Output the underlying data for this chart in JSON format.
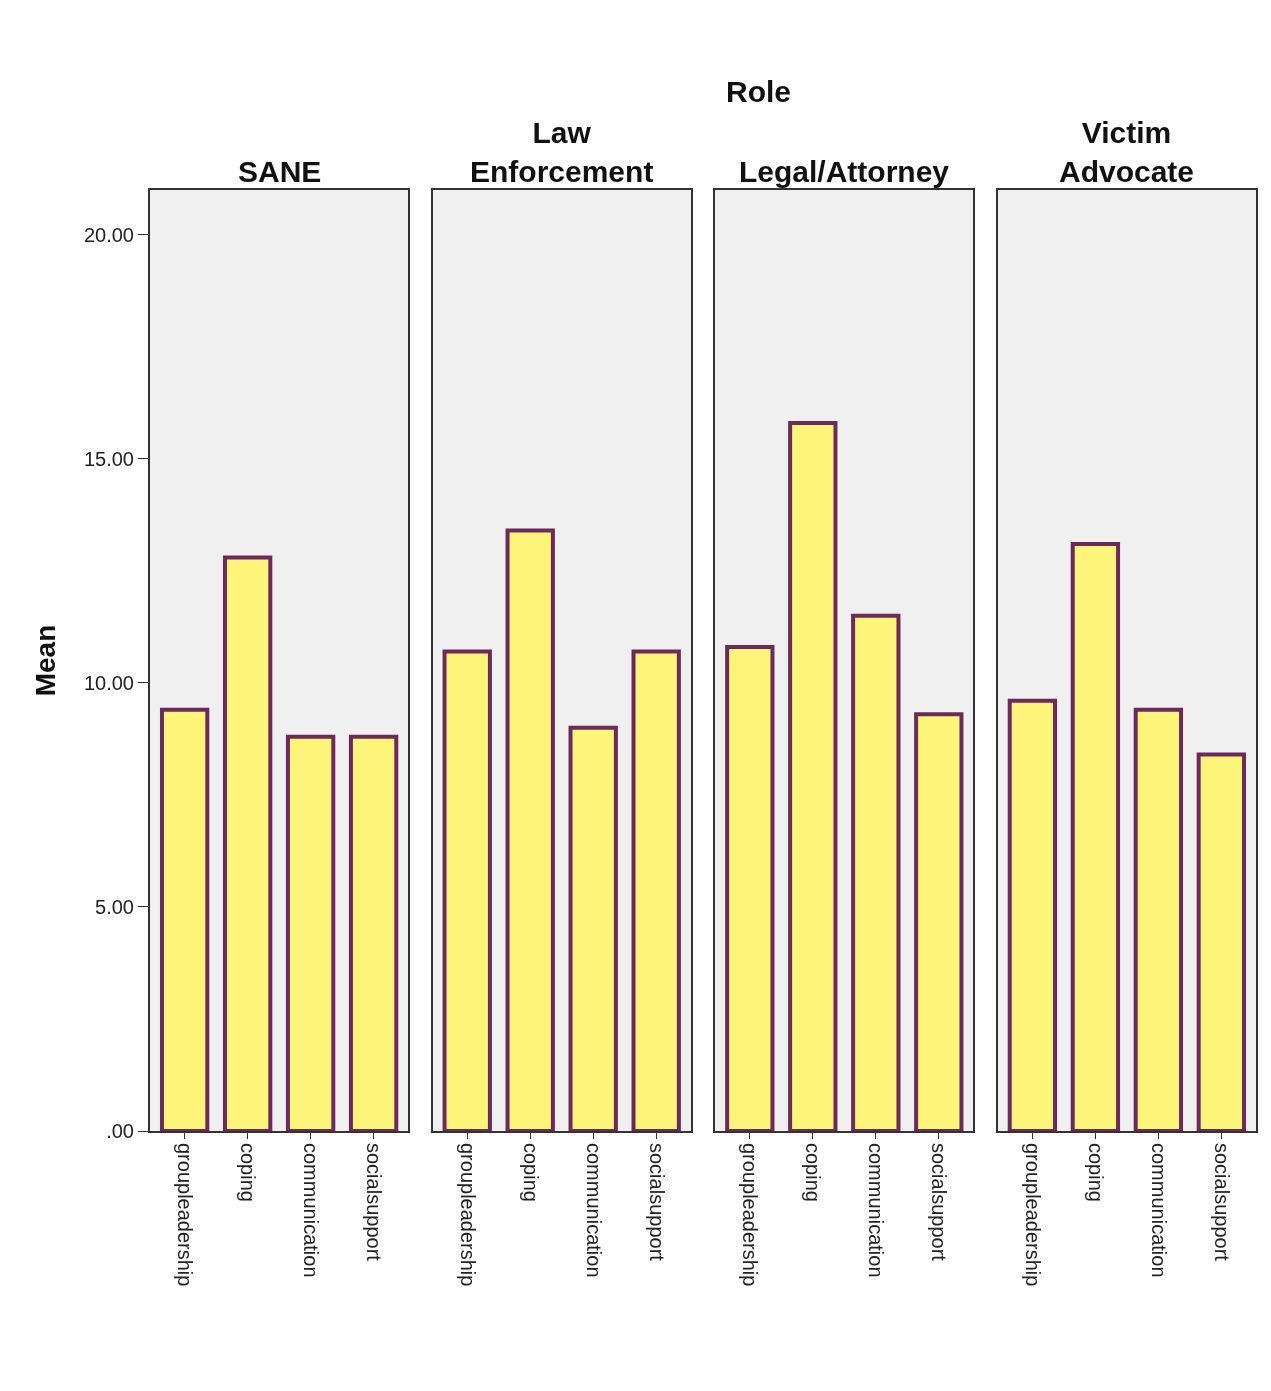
{
  "chart_data": [
    {
      "type": "bar",
      "title": "SANE",
      "ylabel": "Mean",
      "annotations": [
        "Role"
      ],
      "categories": [
        "groupleadership",
        "coping",
        "communication",
        "socialsupport"
      ],
      "values": [
        9.4,
        12.8,
        8.8,
        8.8
      ],
      "color": "#fdf57a",
      "ylim": [
        0,
        21
      ],
      "yticks": [
        {
          "value": 0,
          "label": ".00"
        },
        {
          "value": 5,
          "label": "5.00"
        },
        {
          "value": 10,
          "label": "10.00"
        },
        {
          "value": 15,
          "label": "15.00"
        },
        {
          "value": 20,
          "label": "20.00"
        }
      ],
      "grid": false
    },
    {
      "type": "bar",
      "title": "Law\nEnforcement",
      "categories": [
        "groupleadership",
        "coping",
        "communication",
        "socialsupport"
      ],
      "values": [
        10.7,
        13.4,
        9.0,
        10.7
      ],
      "color": "#fdf57a",
      "ylim": [
        0,
        21
      ],
      "tick_labels": "x",
      "grid": false
    },
    {
      "type": "bar",
      "title": "Legal/Attorney",
      "categories": [
        "groupleadership",
        "coping",
        "communication",
        "socialsupport"
      ],
      "values": [
        10.8,
        15.8,
        11.5,
        9.3
      ],
      "color": "#fdf57a",
      "ylim": [
        0,
        21
      ],
      "tick_labels": "x",
      "grid": false
    },
    {
      "type": "bar",
      "title": "Victim\nAdvocate",
      "categories": [
        "groupleadership",
        "coping",
        "communication",
        "socialsupport"
      ],
      "values": [
        9.6,
        13.1,
        9.4,
        8.4
      ],
      "color": "#fdf57a",
      "ylim": [
        0,
        21
      ],
      "tick_labels": "x",
      "grid": false
    }
  ]
}
